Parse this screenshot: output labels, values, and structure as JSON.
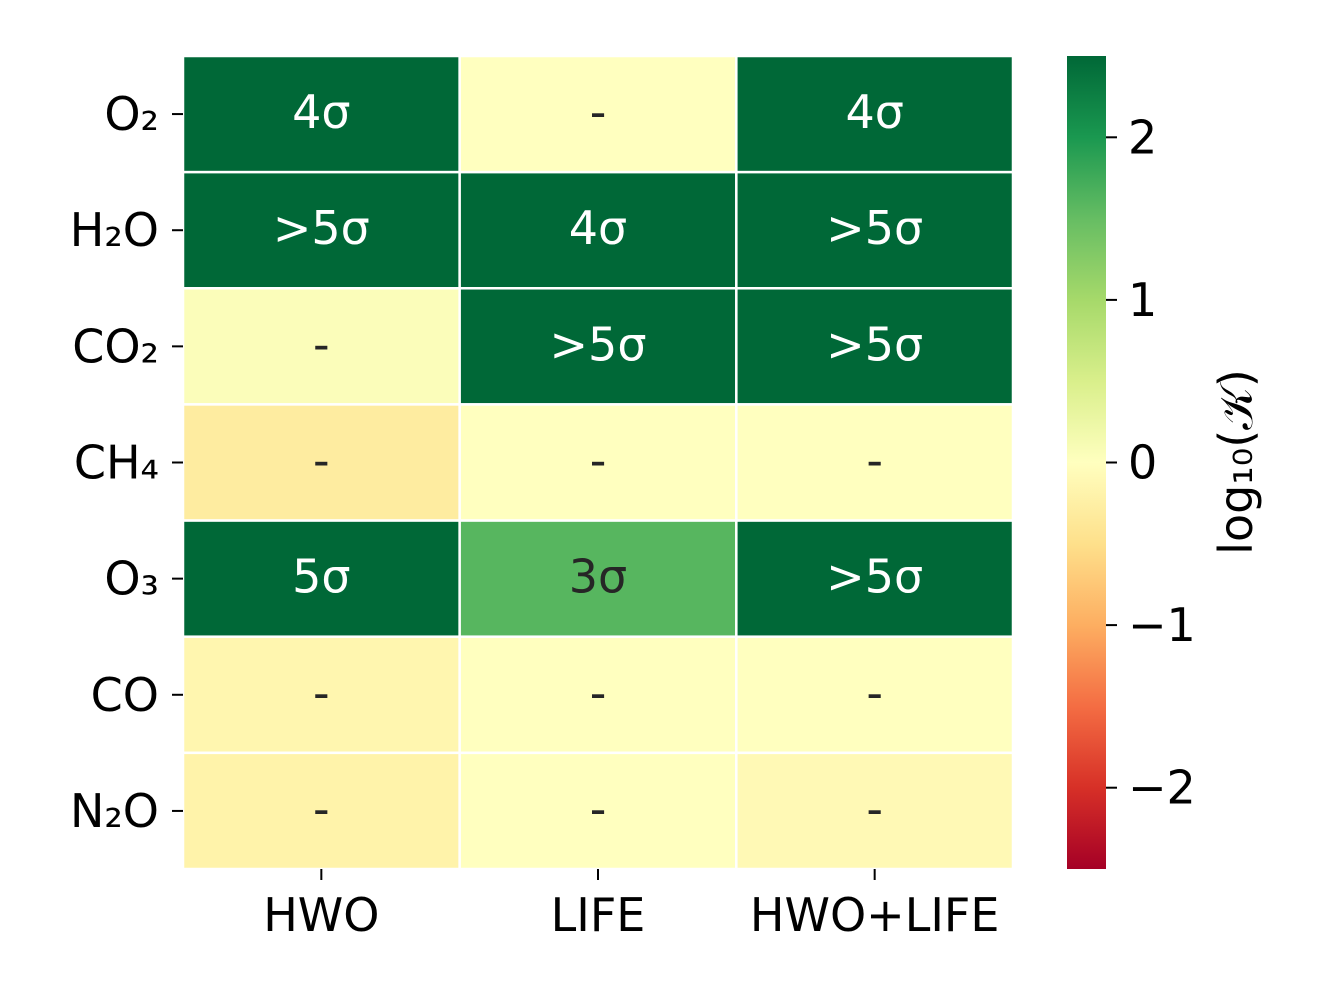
{
  "chart_data": {
    "type": "heatmap",
    "rows": [
      "O₂",
      "H₂O",
      "CO₂",
      "CH₄",
      "O₃",
      "CO",
      "N₂O"
    ],
    "columns": [
      "HWO",
      "LIFE",
      "HWO+LIFE"
    ],
    "values": [
      [
        2.6,
        0.0,
        2.6
      ],
      [
        3.0,
        2.6,
        3.0
      ],
      [
        0.05,
        3.0,
        3.0
      ],
      [
        -0.3,
        0.0,
        0.0
      ],
      [
        2.8,
        1.6,
        3.0
      ],
      [
        -0.15,
        0.0,
        0.0
      ],
      [
        -0.2,
        0.0,
        -0.1
      ]
    ],
    "annotations": [
      [
        "4σ",
        "-",
        "4σ"
      ],
      [
        ">5σ",
        "4σ",
        ">5σ"
      ],
      [
        "-",
        ">5σ",
        ">5σ"
      ],
      [
        "-",
        "-",
        "-"
      ],
      [
        "5σ",
        "3σ",
        ">5σ"
      ],
      [
        "-",
        "-",
        "-"
      ],
      [
        "-",
        "-",
        "-"
      ]
    ],
    "colorbar": {
      "label": "log₁₀(𝒦)",
      "range": [
        -2.5,
        2.5
      ],
      "ticks": [
        -2,
        -1,
        0,
        1,
        2
      ],
      "tick_labels": [
        "−2",
        "−1",
        "0",
        "1",
        "2"
      ],
      "colormap": "RdYlGn"
    },
    "grid": false
  }
}
